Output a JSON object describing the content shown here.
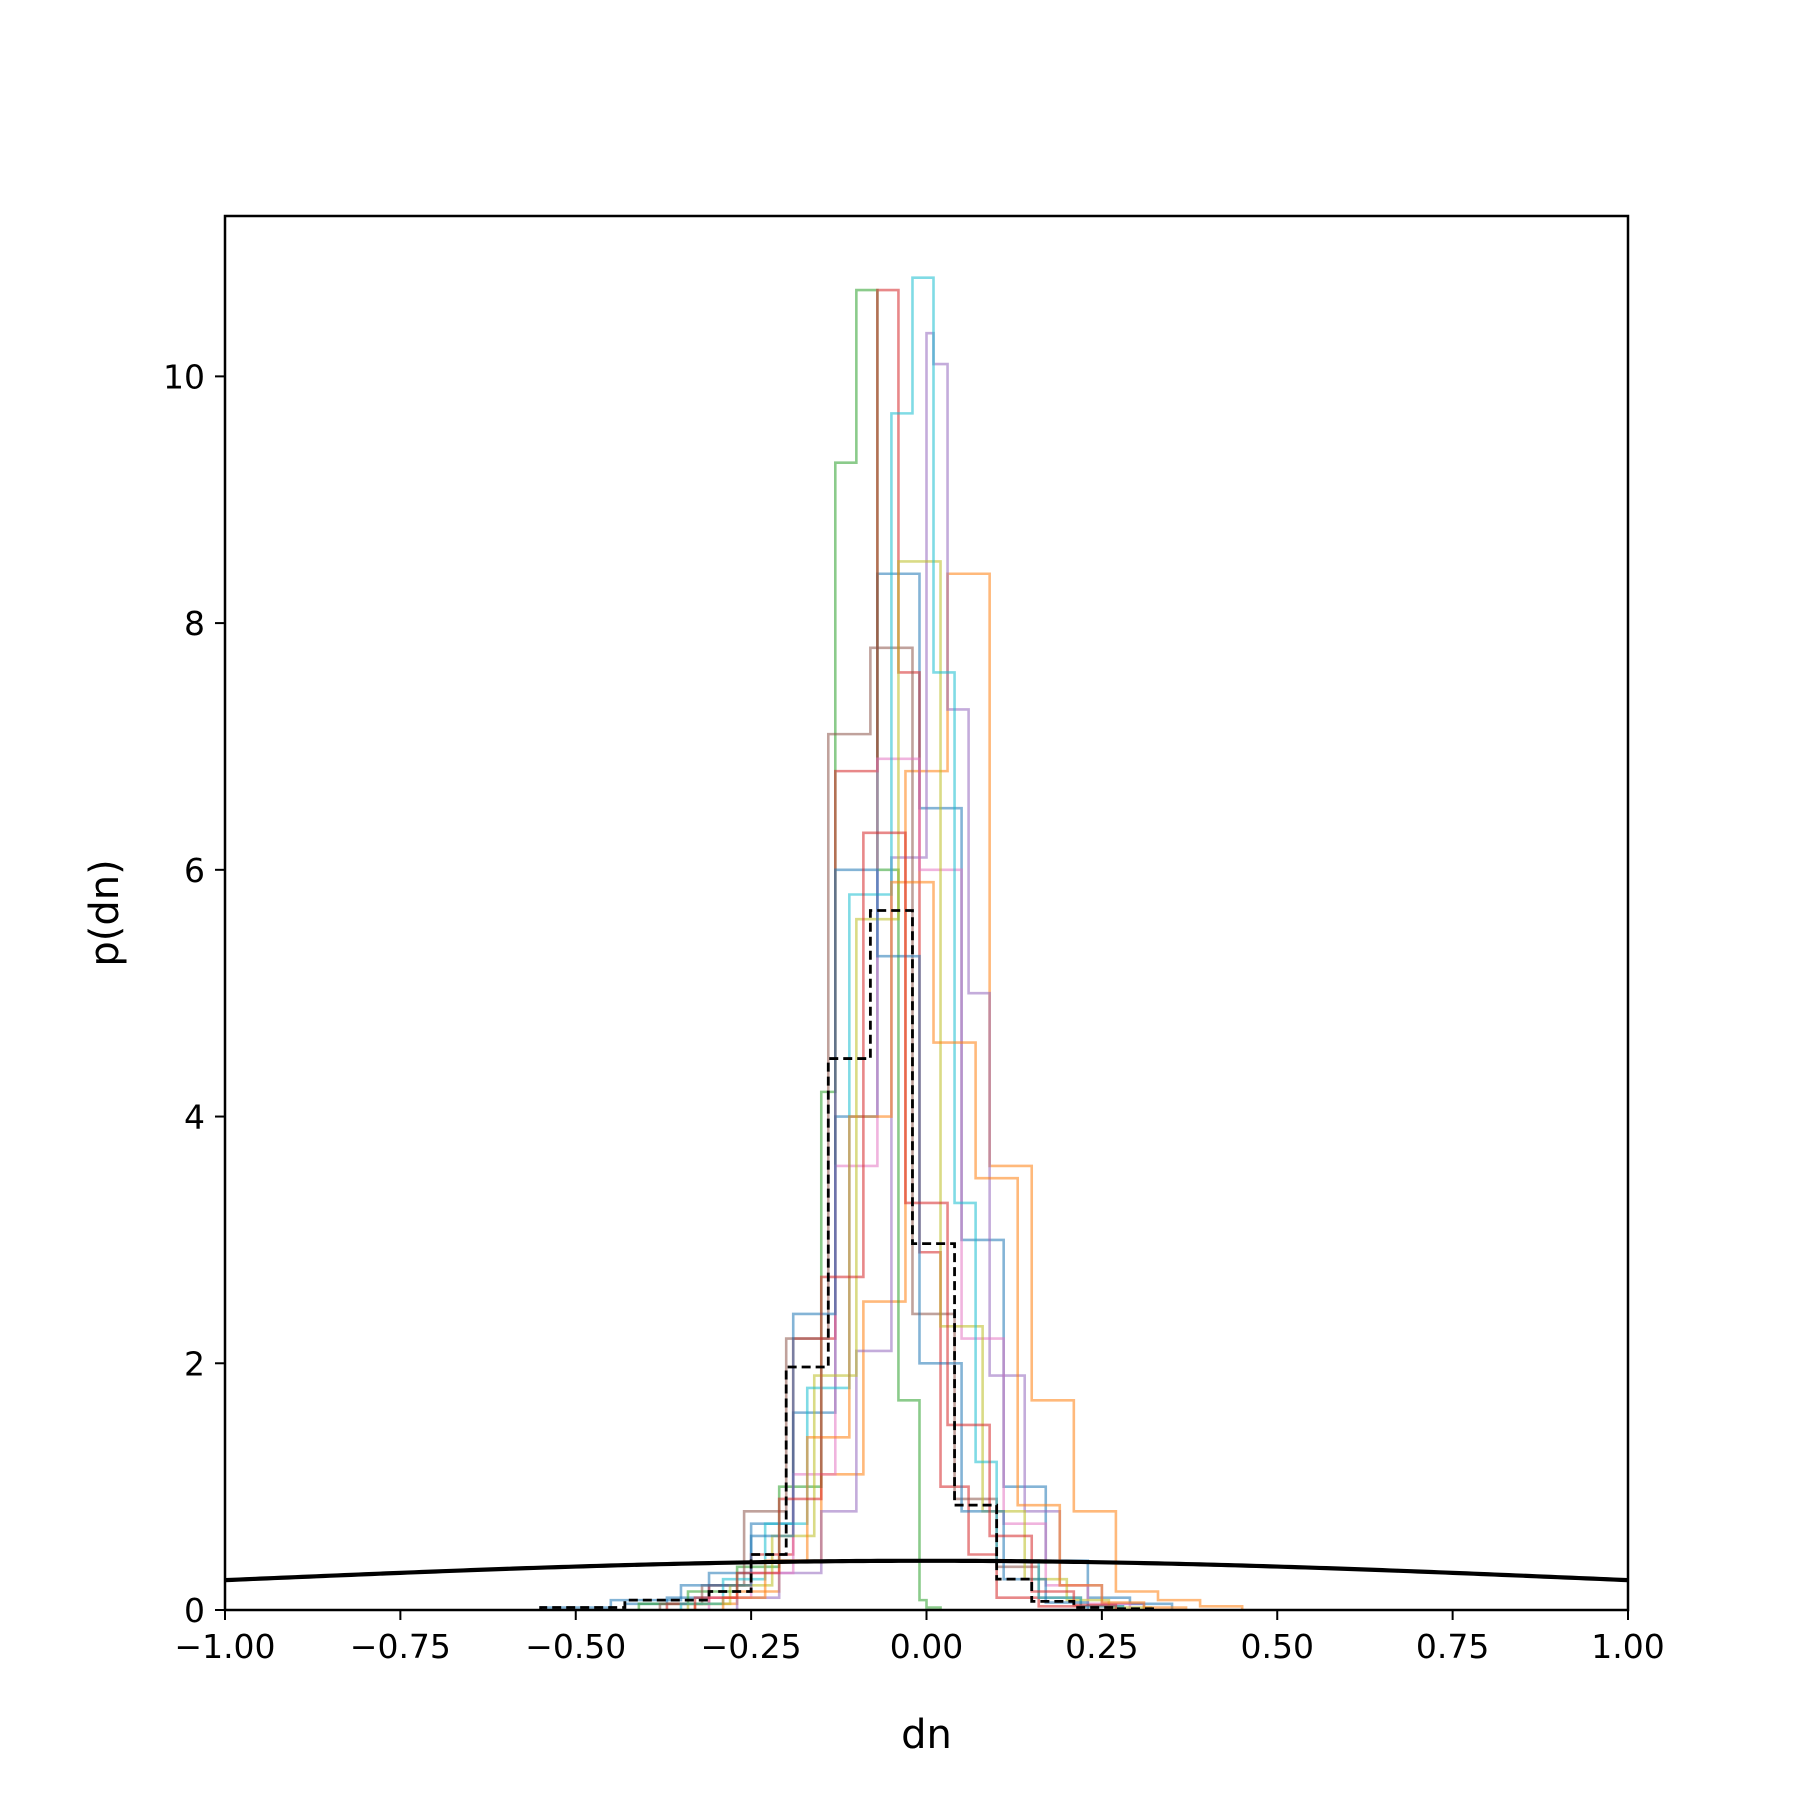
{
  "chart_data": {
    "type": "histogram",
    "xlabel": "dn",
    "ylabel": "p(dn)",
    "xlim": [
      -1.0,
      1.0
    ],
    "ylim": [
      0,
      11.3
    ],
    "grid": false,
    "legend": "none",
    "x_ticks": [
      -1.0,
      -0.75,
      -0.5,
      -0.25,
      0.0,
      0.25,
      0.5,
      0.75,
      1.0
    ],
    "x_tick_labels": [
      "−1.00",
      "−0.75",
      "−0.50",
      "−0.25",
      "0.00",
      "0.25",
      "0.50",
      "0.75",
      "1.00"
    ],
    "y_ticks": [
      0,
      2,
      4,
      6,
      8,
      10
    ],
    "y_tick_labels": [
      "0",
      "2",
      "4",
      "6",
      "8",
      "10"
    ],
    "histograms": [
      {
        "color": "#1f77b4",
        "edges": [
          -0.43,
          -0.37,
          -0.31,
          -0.25,
          -0.19,
          -0.13,
          -0.07,
          -0.01,
          0.05,
          0.11,
          0.17,
          0.23,
          0.29,
          0.35
        ],
        "heights": [
          0.05,
          0.1,
          0.3,
          0.7,
          1.6,
          4.0,
          8.4,
          6.5,
          3.0,
          1.0,
          0.4,
          0.1,
          0.05
        ]
      },
      {
        "color": "#ff7f0e",
        "edges": [
          -0.33,
          -0.27,
          -0.21,
          -0.15,
          -0.09,
          -0.03,
          0.03,
          0.09,
          0.15,
          0.21,
          0.27,
          0.33,
          0.39,
          0.45
        ],
        "heights": [
          0.05,
          0.15,
          0.4,
          1.1,
          2.5,
          6.8,
          8.4,
          3.6,
          1.7,
          0.8,
          0.15,
          0.08,
          0.03
        ]
      },
      {
        "color": "#2ca02c",
        "edges": [
          -0.41,
          -0.34,
          -0.27,
          -0.21,
          -0.15,
          -0.13,
          -0.1,
          -0.07,
          -0.04,
          -0.01,
          0.0,
          0.02
        ],
        "heights": [
          0.05,
          0.15,
          0.35,
          1.0,
          4.2,
          9.3,
          10.7,
          6.0,
          1.7,
          0.08,
          0.02
        ]
      },
      {
        "color": "#d62728",
        "edges": [
          -0.37,
          -0.31,
          -0.25,
          -0.19,
          -0.13,
          -0.07,
          -0.04,
          -0.01,
          0.02,
          0.06,
          0.1,
          0.16,
          0.22
        ],
        "heights": [
          0.05,
          0.2,
          0.45,
          2.2,
          6.8,
          10.7,
          7.6,
          2.9,
          1.0,
          0.45,
          0.1,
          0.03
        ]
      },
      {
        "color": "#9467bd",
        "edges": [
          -0.27,
          -0.21,
          -0.15,
          -0.1,
          -0.05,
          0.0,
          0.01,
          0.03,
          0.06,
          0.09,
          0.14,
          0.19,
          0.25,
          0.31
        ],
        "heights": [
          0.1,
          0.3,
          0.8,
          2.1,
          6.1,
          10.35,
          10.1,
          7.3,
          5.0,
          1.9,
          0.8,
          0.2,
          0.05
        ]
      },
      {
        "color": "#8c564b",
        "edges": [
          -0.38,
          -0.32,
          -0.26,
          -0.2,
          -0.14,
          -0.08,
          -0.02,
          0.04,
          0.1,
          0.16,
          0.22,
          0.28
        ],
        "heights": [
          0.05,
          0.2,
          0.8,
          2.2,
          7.1,
          7.8,
          2.4,
          0.9,
          0.35,
          0.1,
          0.03
        ]
      },
      {
        "color": "#e377c2",
        "edges": [
          -0.31,
          -0.25,
          -0.19,
          -0.13,
          -0.07,
          -0.01,
          0.05,
          0.11,
          0.17,
          0.23,
          0.29
        ],
        "heights": [
          0.1,
          0.3,
          1.1,
          3.6,
          6.9,
          6.0,
          2.2,
          0.7,
          0.2,
          0.05
        ]
      },
      {
        "color": "#bcbd22",
        "edges": [
          -0.34,
          -0.28,
          -0.22,
          -0.16,
          -0.1,
          -0.04,
          0.02,
          0.08,
          0.14,
          0.2,
          0.26,
          0.32
        ],
        "heights": [
          0.05,
          0.2,
          0.6,
          1.9,
          5.6,
          8.5,
          2.3,
          0.8,
          0.25,
          0.08,
          0.02
        ]
      },
      {
        "color": "#17becf",
        "edges": [
          -0.35,
          -0.29,
          -0.23,
          -0.17,
          -0.11,
          -0.05,
          -0.02,
          0.01,
          0.04,
          0.07,
          0.1,
          0.16,
          0.22,
          0.28
        ],
        "heights": [
          0.05,
          0.25,
          0.7,
          1.8,
          5.8,
          9.7,
          10.8,
          7.6,
          3.3,
          1.2,
          0.4,
          0.1,
          0.03
        ]
      },
      {
        "color": "#1f77b4",
        "edges": [
          -0.55,
          -0.45,
          -0.35,
          -0.25,
          -0.19,
          -0.13,
          -0.07,
          -0.01,
          0.05,
          0.11,
          0.17,
          0.23
        ],
        "heights": [
          0.02,
          0.08,
          0.2,
          0.6,
          2.4,
          6.0,
          5.3,
          2.0,
          0.8,
          0.25,
          0.06
        ]
      },
      {
        "color": "#ff7f0e",
        "edges": [
          -0.29,
          -0.23,
          -0.17,
          -0.11,
          -0.05,
          0.01,
          0.07,
          0.13,
          0.19,
          0.25,
          0.31,
          0.37
        ],
        "heights": [
          0.1,
          0.4,
          1.4,
          4.0,
          5.9,
          4.6,
          3.5,
          0.85,
          0.2,
          0.06,
          0.02
        ]
      },
      {
        "color": "#d62728",
        "edges": [
          -0.33,
          -0.27,
          -0.21,
          -0.15,
          -0.09,
          -0.03,
          0.03,
          0.09,
          0.15,
          0.21,
          0.27
        ],
        "heights": [
          0.1,
          0.3,
          0.9,
          2.7,
          6.3,
          3.3,
          1.5,
          0.6,
          0.15,
          0.04
        ]
      }
    ],
    "aggregate_histogram": {
      "color": "#000000",
      "style": "dashed",
      "edges": [
        -0.55,
        -0.43,
        -0.31,
        -0.25,
        -0.2,
        -0.14,
        -0.08,
        -0.02,
        0.04,
        0.1,
        0.15,
        0.21,
        0.27,
        0.33
      ],
      "heights": [
        0.02,
        0.08,
        0.15,
        0.45,
        1.97,
        4.47,
        5.67,
        2.97,
        0.85,
        0.25,
        0.07,
        0.02,
        0.01
      ]
    },
    "prior_curve": {
      "color": "#000000",
      "kind": "normal",
      "mean": 0.0,
      "sd": 1.0
    }
  }
}
